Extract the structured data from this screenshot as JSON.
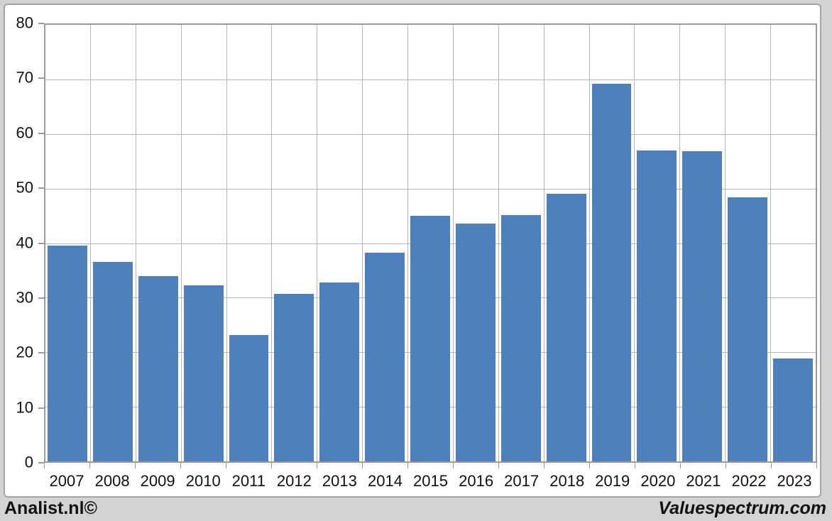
{
  "chart_data": {
    "type": "bar",
    "title": "",
    "xlabel": "",
    "ylabel": "",
    "categories": [
      "2007",
      "2008",
      "2009",
      "2010",
      "2011",
      "2012",
      "2013",
      "2014",
      "2015",
      "2016",
      "2017",
      "2018",
      "2019",
      "2020",
      "2021",
      "2022",
      "2023"
    ],
    "values": [
      39.6,
      36.5,
      34.0,
      32.2,
      23.2,
      30.7,
      32.8,
      38.3,
      45.0,
      43.6,
      45.1,
      49.0,
      69.2,
      57.0,
      56.8,
      48.4,
      18.9
    ],
    "ylim": [
      0,
      80
    ],
    "ytick_step": 10,
    "yticks": [
      0,
      10,
      20,
      30,
      40,
      50,
      60,
      70,
      80
    ],
    "grid": true,
    "legend": "none",
    "bar_color": "#4e80bc"
  },
  "footer": {
    "left_text": "Analist.nl©",
    "right_text": "Valuespectrum.com"
  },
  "colors": {
    "bar": "#4e80bc",
    "gridline": "#b7b7b7",
    "axis": "#9a9a9a",
    "panel_border": "#a3a3a3",
    "page_background": "#d3d3d3",
    "text": "#111111"
  }
}
